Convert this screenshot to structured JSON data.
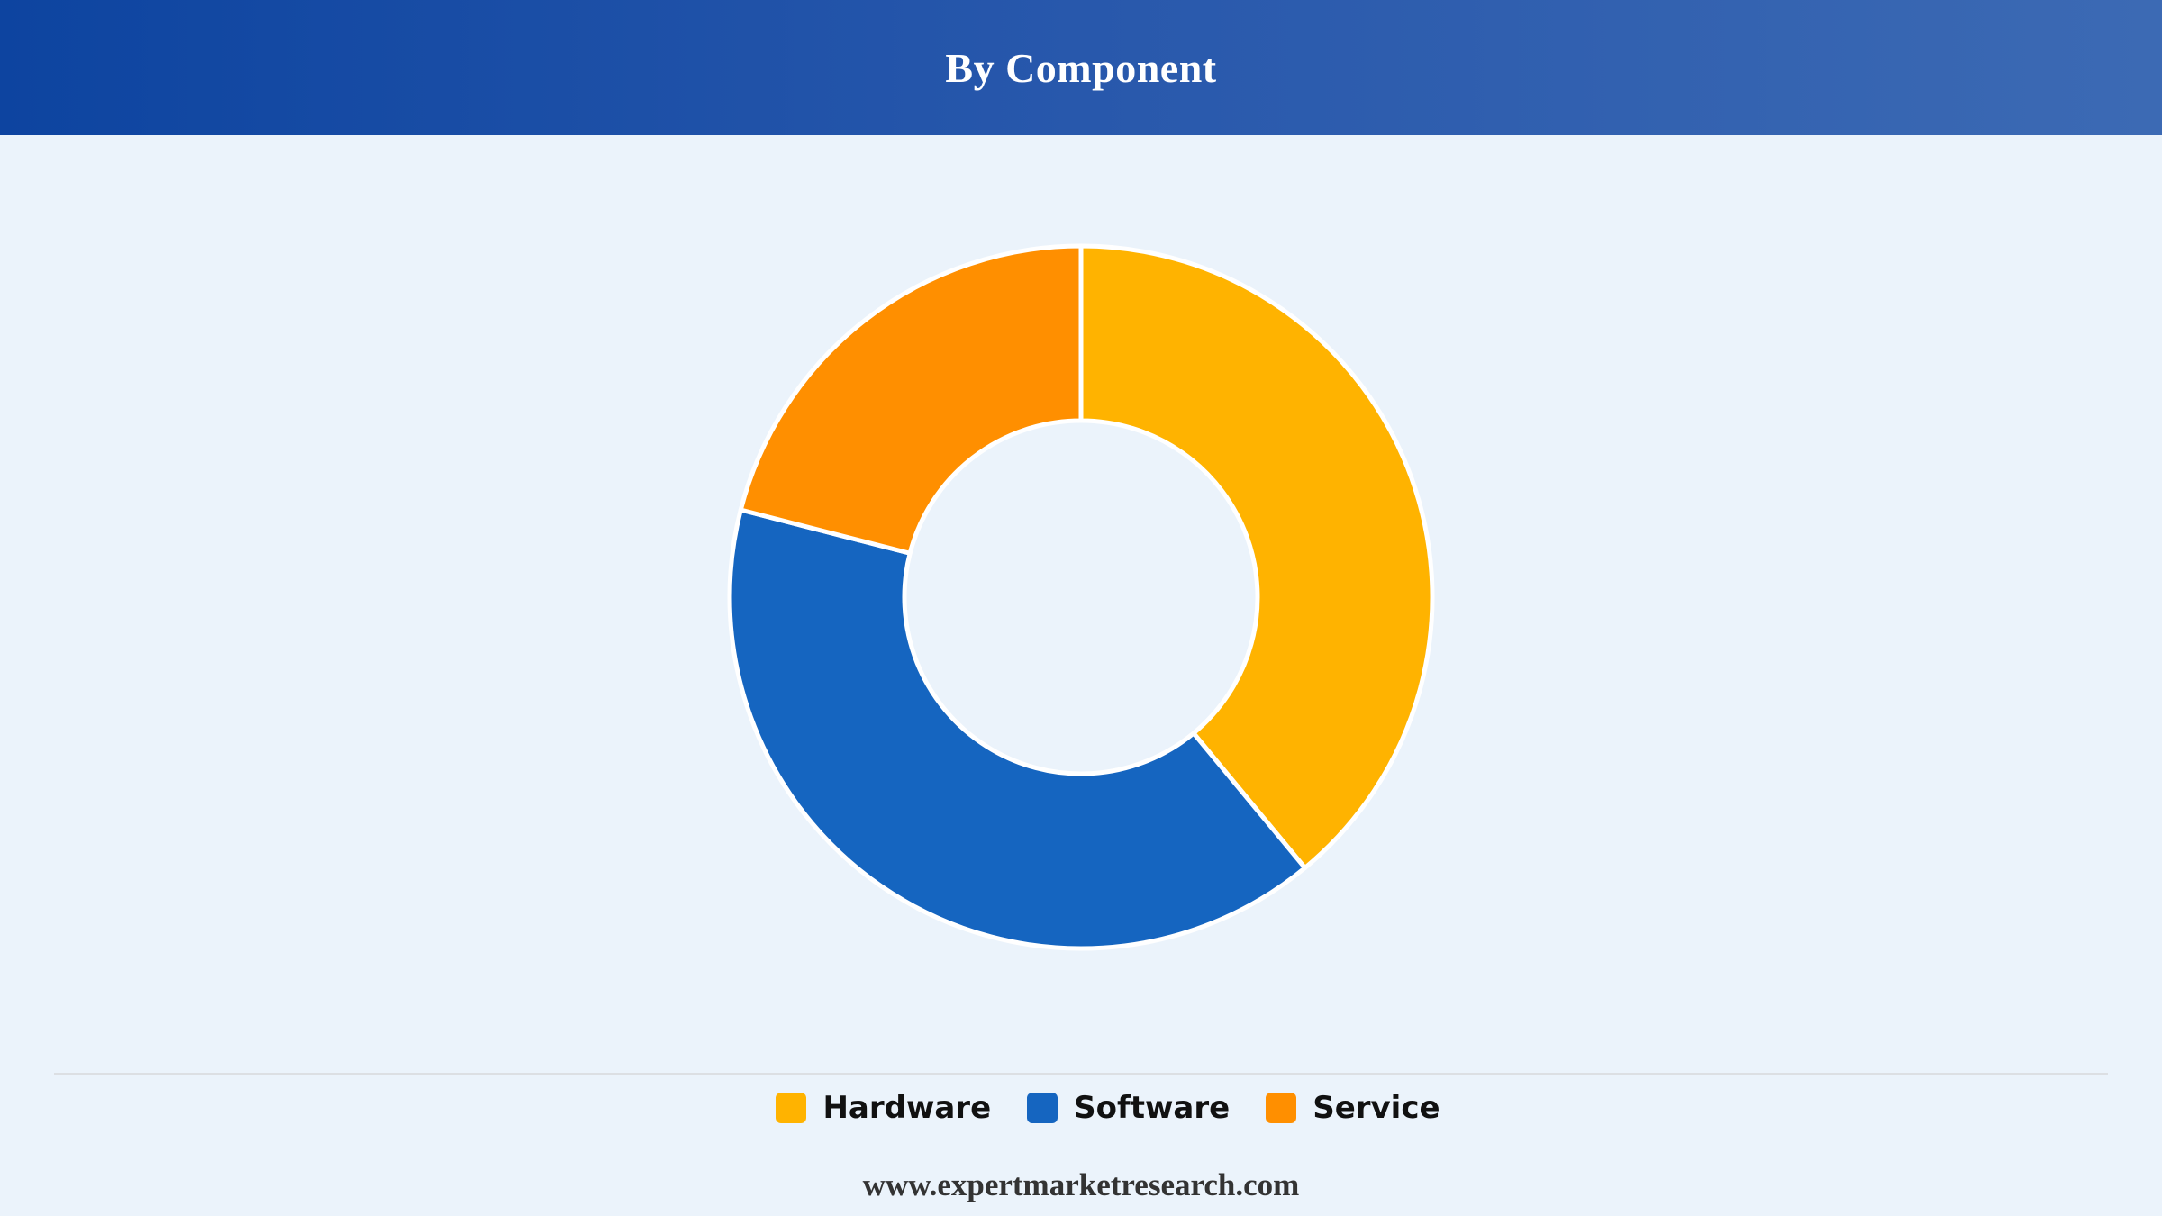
{
  "header": {
    "title": "By Component"
  },
  "chart_data": {
    "type": "pie",
    "title": "By Component",
    "categories": [
      "Hardware",
      "Software",
      "Service"
    ],
    "values": [
      39,
      40,
      21
    ],
    "colors": [
      "#ffb300",
      "#1565c0",
      "#ff8f00"
    ],
    "legend_position": "bottom",
    "style": "donut"
  },
  "legend": {
    "items": [
      {
        "label": "Hardware",
        "color": "#ffb300"
      },
      {
        "label": "Software",
        "color": "#1565c0"
      },
      {
        "label": "Service",
        "color": "#ff8f00"
      }
    ]
  },
  "footer": {
    "source": "www.expertmarketresearch.com"
  }
}
